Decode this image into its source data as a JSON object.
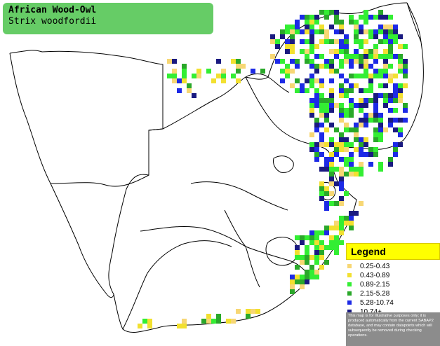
{
  "title": {
    "common_name": "African Wood-Owl",
    "scientific_name": "Strix woodfordii"
  },
  "legend": {
    "heading": "Legend",
    "items": [
      {
        "label": "0.25-0.43",
        "color": "#f7d774"
      },
      {
        "label": "0.43-0.89",
        "color": "#f2e030"
      },
      {
        "label": "0.89-2.15",
        "color": "#33ee33"
      },
      {
        "label": "2.15-5.28",
        "color": "#2aa82a"
      },
      {
        "label": "5.28-10.74",
        "color": "#1d2ae6"
      },
      {
        "label": "10.74+",
        "color": "#1a1a80"
      }
    ],
    "note": "This map is for illustrative purposes only; it is produced automatically from the current SABAP2 database, and may contain datapoints which will subsequently be removed during checking operations."
  },
  "colors": {
    "title_bg": "#66cc66",
    "legend_header_bg": "#ffff00",
    "border_line": "#000000"
  }
}
